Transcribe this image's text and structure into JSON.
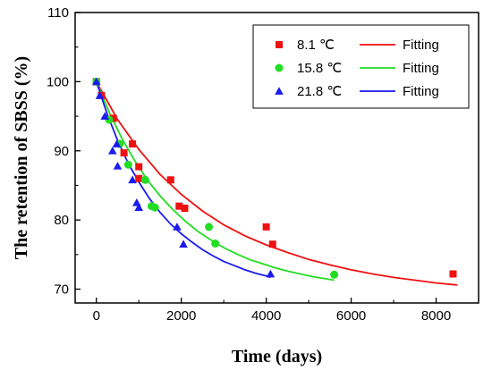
{
  "chart_data": {
    "type": "scatter",
    "xlabel": "Time (days)",
    "ylabel": "The retention of SBSS (%)",
    "xlim": [
      -500,
      9000
    ],
    "ylim": [
      68,
      110
    ],
    "xticks": [
      0,
      2000,
      4000,
      6000,
      8000
    ],
    "yticks": [
      70,
      80,
      90,
      100,
      110
    ],
    "legend": {
      "placement": "top-right"
    },
    "series": [
      {
        "name": "8.1 ℃",
        "marker": "square",
        "color": "#ee1111",
        "fit_name": "Fitting",
        "points": [
          [
            0,
            100
          ],
          [
            120,
            98
          ],
          [
            400,
            94.7
          ],
          [
            650,
            89.7
          ],
          [
            850,
            91
          ],
          [
            1000,
            87.7
          ],
          [
            1000,
            86
          ],
          [
            1750,
            85.8
          ],
          [
            1950,
            82
          ],
          [
            2080,
            81.7
          ],
          [
            4000,
            79
          ],
          [
            4150,
            76.5
          ],
          [
            8400,
            72.2
          ]
        ],
        "fit": [
          [
            0,
            100
          ],
          [
            500,
            94.5
          ],
          [
            1000,
            90.2
          ],
          [
            1500,
            86.6
          ],
          [
            2000,
            83.7
          ],
          [
            2500,
            81.3
          ],
          [
            3000,
            79.3
          ],
          [
            3500,
            77.7
          ],
          [
            4000,
            76.4
          ],
          [
            4500,
            75.3
          ],
          [
            5000,
            74.3
          ],
          [
            5500,
            73.5
          ],
          [
            6000,
            72.8
          ],
          [
            6500,
            72.2
          ],
          [
            7000,
            71.7
          ],
          [
            7500,
            71.3
          ],
          [
            8000,
            70.9
          ],
          [
            8500,
            70.6
          ]
        ]
      },
      {
        "name": "15.8 ℃",
        "marker": "circle",
        "color": "#22dd22",
        "fit_name": "Fitting",
        "points": [
          [
            0,
            100
          ],
          [
            300,
            94.5
          ],
          [
            550,
            91
          ],
          [
            750,
            88
          ],
          [
            1150,
            85.8
          ],
          [
            1300,
            82
          ],
          [
            1380,
            81.8
          ],
          [
            2650,
            79
          ],
          [
            2800,
            76.6
          ],
          [
            5600,
            72.1
          ]
        ],
        "fit": [
          [
            0,
            100
          ],
          [
            300,
            95.6
          ],
          [
            600,
            91.8
          ],
          [
            900,
            88.6
          ],
          [
            1200,
            85.8
          ],
          [
            1500,
            83.5
          ],
          [
            1800,
            81.5
          ],
          [
            2100,
            79.8
          ],
          [
            2400,
            78.3
          ],
          [
            2700,
            77.1
          ],
          [
            3000,
            76
          ],
          [
            3300,
            75.1
          ],
          [
            3600,
            74.3
          ],
          [
            3900,
            73.7
          ],
          [
            4200,
            73.1
          ],
          [
            4500,
            72.6
          ],
          [
            4800,
            72.2
          ],
          [
            5100,
            71.8
          ],
          [
            5400,
            71.5
          ],
          [
            5600,
            71.3
          ]
        ]
      },
      {
        "name": "21.8 ℃",
        "marker": "triangle",
        "color": "#1a1aee",
        "fit_name": "Fitting",
        "points": [
          [
            0,
            100
          ],
          [
            80,
            98
          ],
          [
            200,
            95
          ],
          [
            380,
            90
          ],
          [
            480,
            91
          ],
          [
            500,
            87.8
          ],
          [
            850,
            85.8
          ],
          [
            950,
            82.5
          ],
          [
            1000,
            81.8
          ],
          [
            1900,
            79
          ],
          [
            2050,
            76.5
          ],
          [
            4100,
            72.2
          ]
        ],
        "fit": [
          [
            0,
            100
          ],
          [
            250,
            95.4
          ],
          [
            500,
            91.5
          ],
          [
            750,
            88.2
          ],
          [
            1000,
            85.5
          ],
          [
            1250,
            83.1
          ],
          [
            1500,
            81.1
          ],
          [
            1750,
            79.4
          ],
          [
            2000,
            78
          ],
          [
            2250,
            76.8
          ],
          [
            2500,
            75.7
          ],
          [
            2750,
            74.8
          ],
          [
            3000,
            74
          ],
          [
            3250,
            73.4
          ],
          [
            3500,
            72.8
          ],
          [
            3750,
            72.3
          ],
          [
            4000,
            71.9
          ],
          [
            4100,
            71.7
          ]
        ]
      }
    ]
  }
}
